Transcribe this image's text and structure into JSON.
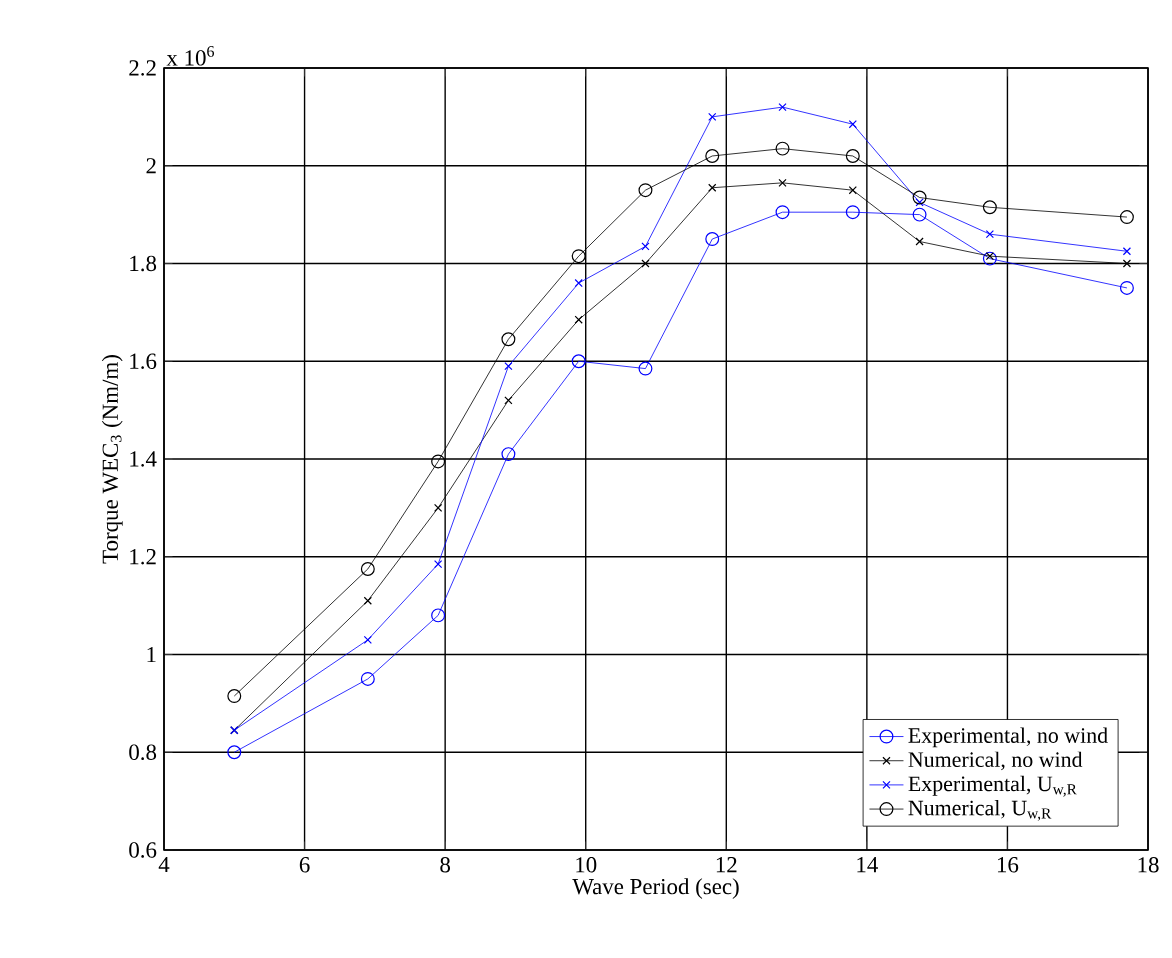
{
  "chart_data": {
    "type": "line",
    "xlabel": "Wave Period (sec)",
    "ylabel": "Torque WEC$_{3}$ (Nm/m)",
    "annotations": [
      "x 10$^{6}$"
    ],
    "x": [
      5,
      6.9,
      7.9,
      8.9,
      9.9,
      10.85,
      11.8,
      12.8,
      13.8,
      14.75,
      15.75,
      17.7
    ],
    "series": [
      {
        "name": "Experimental, no wind",
        "color": "#0000ff",
        "marker": "circle",
        "values": [
          0.8,
          0.95,
          1.08,
          1.41,
          1.6,
          1.585,
          1.85,
          1.905,
          1.905,
          1.9,
          1.81,
          1.75
        ]
      },
      {
        "name": "Numerical, no wind",
        "color": "#000000",
        "marker": "cross",
        "values": [
          0.845,
          1.11,
          1.3,
          1.52,
          1.685,
          1.8,
          1.955,
          1.965,
          1.95,
          1.845,
          1.815,
          1.8
        ]
      },
      {
        "name": "Experimental, U$_{w,R}$",
        "color": "#0000ff",
        "marker": "cross",
        "values": [
          0.845,
          1.03,
          1.185,
          1.59,
          1.76,
          1.835,
          2.1,
          2.12,
          2.085,
          1.925,
          1.86,
          1.825
        ]
      },
      {
        "name": "Numerical, U$_{w,R}$",
        "color": "#000000",
        "marker": "circle",
        "values": [
          0.915,
          1.175,
          1.395,
          1.645,
          1.815,
          1.95,
          2.02,
          2.035,
          2.02,
          1.935,
          1.915,
          1.895
        ]
      }
    ],
    "xlim": [
      4,
      18
    ],
    "ylim": [
      0.6,
      2.2
    ],
    "xticks": [
      4,
      6,
      8,
      10,
      12,
      14,
      16,
      18
    ],
    "yticks": [
      0.6,
      0.8,
      1,
      1.2,
      1.4,
      1.6,
      1.8,
      2,
      2.2
    ],
    "grid": true,
    "legend": "bottom right",
    "line_style": "solid"
  }
}
